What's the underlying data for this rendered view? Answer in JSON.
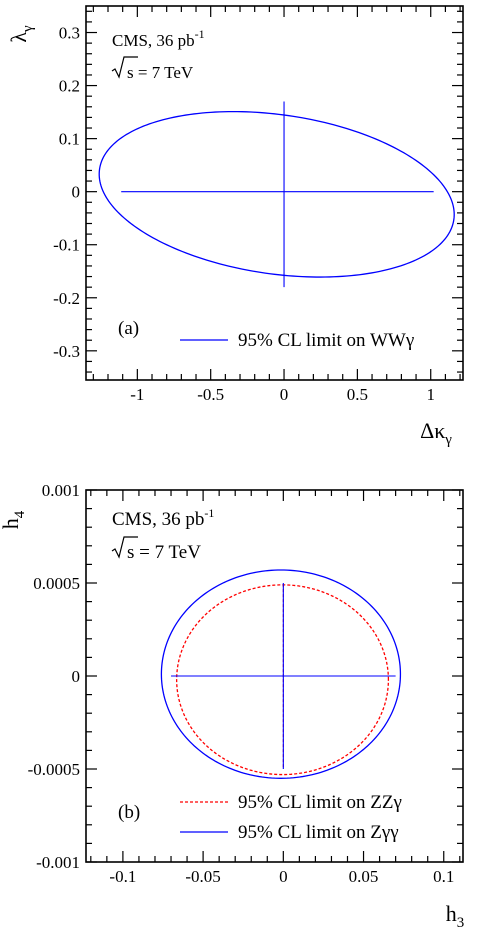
{
  "chart_data": [
    {
      "type": "line",
      "panel_label": "(a)",
      "xlabel": "Δκ",
      "xlabel_sub": "γ",
      "ylabel": "λ",
      "ylabel_sub": "γ",
      "xlim": [
        -1.35,
        1.22
      ],
      "ylim": [
        -0.355,
        0.35
      ],
      "xticks": [
        {
          "v": -1,
          "label": "-1"
        },
        {
          "v": -0.5,
          "label": "-0.5"
        },
        {
          "v": 0,
          "label": "0"
        },
        {
          "v": 0.5,
          "label": "0.5"
        },
        {
          "v": 1,
          "label": "1"
        }
      ],
      "yticks": [
        {
          "v": 0.3,
          "label": "0.3"
        },
        {
          "v": 0.2,
          "label": "0.2"
        },
        {
          "v": 0.1,
          "label": "0.1"
        },
        {
          "v": 0,
          "label": "0"
        },
        {
          "v": -0.1,
          "label": "-0.1"
        },
        {
          "v": -0.2,
          "label": "-0.2"
        },
        {
          "v": -0.3,
          "label": "-0.3"
        }
      ],
      "annotation_experiment": "CMS, 36 pb",
      "annotation_lumi_sup": "-1",
      "annotation_energy": "s = 7 TeV",
      "series": [
        {
          "name": "95% CL limit on WWγ",
          "color": "#0000ff",
          "style": "solid",
          "ellipse": {
            "center": [
              -0.05,
              -0.005
            ],
            "semi_axes": [
              1.22,
              0.15
            ],
            "tilt_deg": -8.2
          },
          "one_d_limits": {
            "x": [
              -1.11,
              1.02
            ],
            "y": [
              -0.18,
              0.17
            ]
          }
        }
      ]
    },
    {
      "type": "line",
      "panel_label": "(b)",
      "xlabel": "h",
      "xlabel_sub": "3",
      "ylabel": "h",
      "ylabel_sub": "4",
      "xlim": [
        -0.123,
        0.112
      ],
      "ylim": [
        -0.001,
        0.001
      ],
      "xticks": [
        {
          "v": -0.1,
          "label": "-0.1"
        },
        {
          "v": -0.05,
          "label": "-0.05"
        },
        {
          "v": 0,
          "label": "0"
        },
        {
          "v": 0.05,
          "label": "0.05"
        },
        {
          "v": 0.1,
          "label": "0.1"
        }
      ],
      "yticks": [
        {
          "v": 0.001,
          "label": "0.001"
        },
        {
          "v": 0.0005,
          "label": "0.0005"
        },
        {
          "v": 0,
          "label": "0"
        },
        {
          "v": -0.0005,
          "label": "-0.0005"
        },
        {
          "v": -0.001,
          "label": "-0.001"
        }
      ],
      "annotation_experiment": "CMS, 36 pb",
      "annotation_lumi_sup": "-1",
      "annotation_energy": "s = 7 TeV",
      "series": [
        {
          "name": "95% CL limit on ZZγ",
          "color": "#ff0000",
          "style": "dotted",
          "ellipse": {
            "center": [
              -0.0005,
              -2e-05
            ],
            "semi_axes": [
              0.066,
              0.00051
            ],
            "tilt_deg": 0
          },
          "one_d_limits": {
            "x": [
              -0.05,
              0.065
            ],
            "y": [
              -0.00049,
              0.00049
            ]
          }
        },
        {
          "name": "95% CL limit on Zγγ",
          "color": "#0000ff",
          "style": "solid",
          "ellipse": {
            "center": [
              -0.0015,
              1e-05
            ],
            "semi_axes": [
              0.0745,
              0.00056
            ],
            "tilt_deg": 0
          },
          "one_d_limits": {
            "x": [
              -0.07,
              0.07
            ],
            "y": [
              -0.0005,
              0.0005
            ]
          }
        }
      ]
    }
  ]
}
